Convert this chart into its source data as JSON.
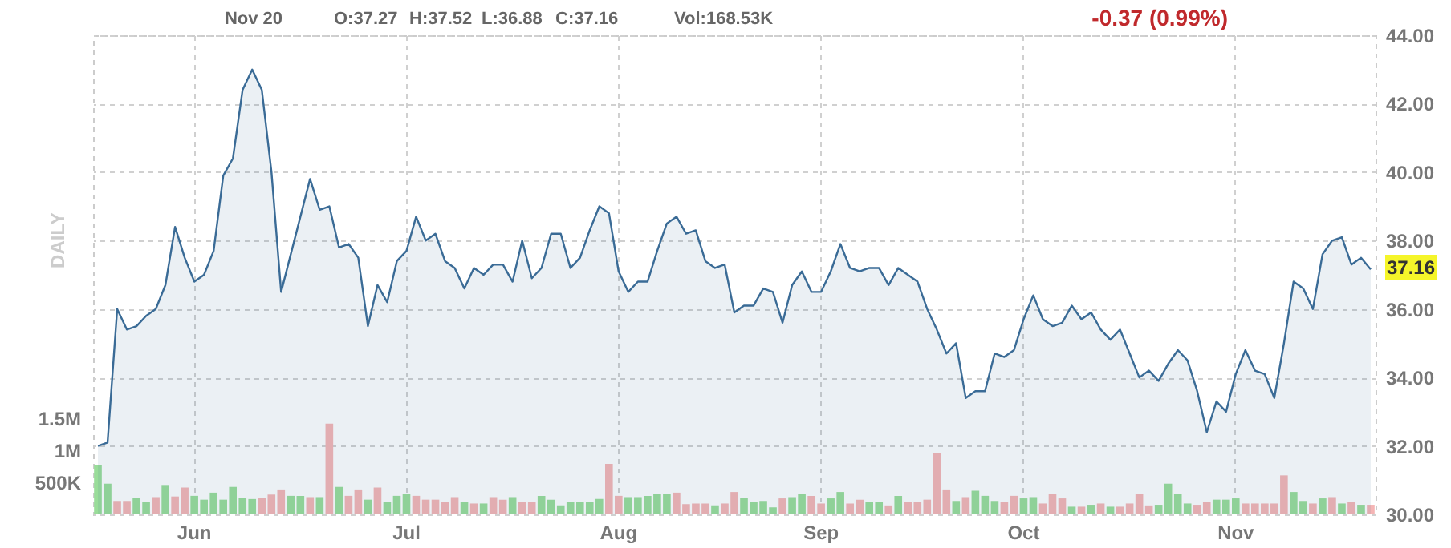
{
  "chart_data": {
    "type": "area",
    "categories": [
      null,
      null,
      null,
      null,
      null,
      null,
      null,
      null,
      null,
      null,
      "Jun",
      null,
      null,
      null,
      null,
      null,
      null,
      null,
      null,
      null,
      null,
      null,
      null,
      null,
      null,
      null,
      null,
      null,
      null,
      null,
      null,
      null,
      "Jul",
      null,
      null,
      null,
      null,
      null,
      null,
      null,
      null,
      null,
      null,
      null,
      null,
      null,
      null,
      null,
      null,
      null,
      null,
      null,
      null,
      null,
      "Aug",
      null,
      null,
      null,
      null,
      null,
      null,
      null,
      null,
      null,
      null,
      null,
      null,
      null,
      null,
      null,
      null,
      null,
      null,
      null,
      null,
      "Sep",
      null,
      null,
      null,
      null,
      null,
      null,
      null,
      null,
      null,
      null,
      null,
      null,
      null,
      null,
      null,
      null,
      null,
      null,
      null,
      null,
      "Oct",
      null,
      null,
      null,
      null,
      null,
      null,
      null,
      null,
      null,
      null,
      null,
      null,
      null,
      null,
      null,
      null,
      null,
      null,
      null,
      null,
      null,
      "Nov",
      null,
      null,
      null,
      null,
      null,
      null,
      null,
      null,
      null,
      null,
      null,
      null,
      null,
      null
    ],
    "series": [
      {
        "color": "#3a6b96",
        "values": [
          32.0,
          32.1,
          36.0,
          35.4,
          35.5,
          35.8,
          36.0,
          36.7,
          38.4,
          37.5,
          36.8,
          37.0,
          37.7,
          39.9,
          40.4,
          42.4,
          43.0,
          42.4,
          40.0,
          36.5,
          37.6,
          38.7,
          39.8,
          38.9,
          39.0,
          37.8,
          37.9,
          37.5,
          35.5,
          36.7,
          36.2,
          37.4,
          37.7,
          38.7,
          38.0,
          38.2,
          37.4,
          37.2,
          36.6,
          37.2,
          37.0,
          37.3,
          37.3,
          36.8,
          38.0,
          36.9,
          37.2,
          38.2,
          38.2,
          37.2,
          37.5,
          38.3,
          39.0,
          38.8,
          37.1,
          36.5,
          36.8,
          36.8,
          37.7,
          38.5,
          38.7,
          38.2,
          38.3,
          37.4,
          37.2,
          37.3,
          35.9,
          36.1,
          36.1,
          36.6,
          36.5,
          35.6,
          36.7,
          37.1,
          36.5,
          36.5,
          37.1,
          37.9,
          37.2,
          37.1,
          37.2,
          37.2,
          36.7,
          37.2,
          37.0,
          36.8,
          36.0,
          35.4,
          34.7,
          35.0,
          33.4,
          33.6,
          33.6,
          34.7,
          34.6,
          34.8,
          35.7,
          36.4,
          35.7,
          35.5,
          35.6,
          36.1,
          35.7,
          35.9,
          35.4,
          35.1,
          35.4,
          34.7,
          34.0,
          34.2,
          33.9,
          34.4,
          34.8,
          34.5,
          33.6,
          32.4,
          33.3,
          33.0,
          34.1,
          34.8,
          34.2,
          34.1,
          33.4,
          35.0,
          36.8,
          36.6,
          36.0,
          37.6,
          38.0,
          38.1,
          37.3,
          37.5,
          37.16
        ]
      },
      {
        "type": "bar",
        "axis": "y2",
        "values": [
          770000,
          480000,
          210000,
          210000,
          260000,
          190000,
          270000,
          460000,
          280000,
          420000,
          290000,
          230000,
          340000,
          230000,
          430000,
          260000,
          240000,
          260000,
          310000,
          390000,
          290000,
          290000,
          270000,
          270000,
          1420000,
          430000,
          290000,
          390000,
          230000,
          420000,
          190000,
          290000,
          320000,
          290000,
          230000,
          230000,
          190000,
          270000,
          190000,
          170000,
          170000,
          270000,
          230000,
          270000,
          190000,
          190000,
          290000,
          230000,
          140000,
          190000,
          190000,
          190000,
          240000,
          790000,
          290000,
          270000,
          270000,
          290000,
          320000,
          320000,
          340000,
          160000,
          170000,
          170000,
          140000,
          170000,
          350000,
          250000,
          190000,
          210000,
          110000,
          250000,
          270000,
          320000,
          290000,
          170000,
          250000,
          350000,
          170000,
          230000,
          190000,
          190000,
          140000,
          290000,
          190000,
          190000,
          230000,
          960000,
          390000,
          210000,
          270000,
          370000,
          290000,
          210000,
          190000,
          290000,
          250000,
          270000,
          170000,
          320000,
          250000,
          120000,
          120000,
          150000,
          170000,
          120000,
          120000,
          170000,
          320000,
          140000,
          150000,
          480000,
          320000,
          170000,
          150000,
          190000,
          230000,
          230000,
          250000,
          170000,
          170000,
          170000,
          170000,
          610000,
          350000,
          210000,
          170000,
          250000,
          270000,
          170000,
          190000,
          150000,
          150000
        ],
        "colors": [
          "#99dd99",
          "#99dd99",
          "#f5b5b5",
          "#f5b5b5",
          "#99dd99",
          "#99dd99",
          "#f5b5b5",
          "#99dd99",
          "#f5b5b5",
          "#f5b5b5",
          "#99dd99",
          "#99dd99",
          "#99dd99",
          "#99dd99",
          "#99dd99",
          "#99dd99",
          "#99dd99",
          "#f5b5b5",
          "#f5b5b5",
          "#f5b5b5",
          "#99dd99",
          "#99dd99",
          "#f5b5b5",
          "#99dd99",
          "#f5b5b5",
          "#99dd99",
          "#f5b5b5",
          "#f5b5b5",
          "#99dd99",
          "#f5b5b5",
          "#99dd99",
          "#99dd99",
          "#99dd99",
          "#f5b5b5",
          "#f5b5b5",
          "#f5b5b5",
          "#f5b5b5",
          "#f5b5b5",
          "#99dd99",
          "#f5b5b5",
          "#99dd99",
          "#f5b5b5",
          "#f5b5b5",
          "#99dd99",
          "#f5b5b5",
          "#f5b5b5",
          "#99dd99",
          "#99dd99",
          "#99dd99",
          "#99dd99",
          "#99dd99",
          "#99dd99",
          "#99dd99",
          "#f5b5b5",
          "#f5b5b5",
          "#99dd99",
          "#99dd99",
          "#99dd99",
          "#99dd99",
          "#99dd99",
          "#f5b5b5",
          "#f5b5b5",
          "#f5b5b5",
          "#f5b5b5",
          "#99dd99",
          "#f5b5b5",
          "#f5b5b5",
          "#99dd99",
          "#99dd99",
          "#99dd99",
          "#99dd99",
          "#f5b5b5",
          "#99dd99",
          "#99dd99",
          "#f5b5b5",
          "#f5b5b5",
          "#99dd99",
          "#99dd99",
          "#f5b5b5",
          "#f5b5b5",
          "#99dd99",
          "#99dd99",
          "#f5b5b5",
          "#99dd99",
          "#f5b5b5",
          "#f5b5b5",
          "#f5b5b5",
          "#f5b5b5",
          "#f5b5b5",
          "#99dd99",
          "#f5b5b5",
          "#99dd99",
          "#99dd99",
          "#99dd99",
          "#f5b5b5",
          "#f5b5b5",
          "#99dd99",
          "#99dd99",
          "#f5b5b5",
          "#f5b5b5",
          "#f5b5b5",
          "#99dd99",
          "#f5b5b5",
          "#99dd99",
          "#f5b5b5",
          "#99dd99",
          "#f5b5b5",
          "#f5b5b5",
          "#f5b5b5",
          "#f5b5b5",
          "#99dd99",
          "#99dd99",
          "#99dd99",
          "#99dd99",
          "#f5b5b5",
          "#f5b5b5",
          "#99dd99",
          "#99dd99",
          "#99dd99",
          "#f5b5b5",
          "#f5b5b5",
          "#f5b5b5",
          "#f5b5b5",
          "#f5b5b5",
          "#99dd99",
          "#99dd99",
          "#f5b5b5",
          "#99dd99",
          "#f5b5b5",
          "#99dd99",
          "#f5b5b5",
          "#99dd99",
          "#f5b5b5"
        ]
      }
    ],
    "ylim": [
      30,
      44
    ],
    "yticks": [
      {
        "value": 30,
        "label": "30.00"
      },
      {
        "value": 32,
        "label": "32.00"
      },
      {
        "value": 34,
        "label": "34.00"
      },
      {
        "value": 36,
        "label": "36.00"
      },
      {
        "value": 38,
        "label": "38.00"
      },
      {
        "value": 40,
        "label": "40.00"
      },
      {
        "value": 42,
        "label": "42.00"
      },
      {
        "value": 44,
        "label": "44.00"
      }
    ],
    "y2lim": [
      0,
      7500000
    ],
    "y2ticks": [
      {
        "value": 500000,
        "label": "500K"
      },
      {
        "value": 1000000,
        "label": "1M"
      },
      {
        "value": 1500000,
        "label": "1.5M"
      }
    ],
    "grid": true,
    "annotations": [
      "Nov 20",
      "O:37.27",
      "H:37.52",
      "L:36.88",
      "C:37.16",
      "Vol:168.53K",
      "-0.37 (0.99%)",
      "DAILY",
      "37.16"
    ]
  }
}
